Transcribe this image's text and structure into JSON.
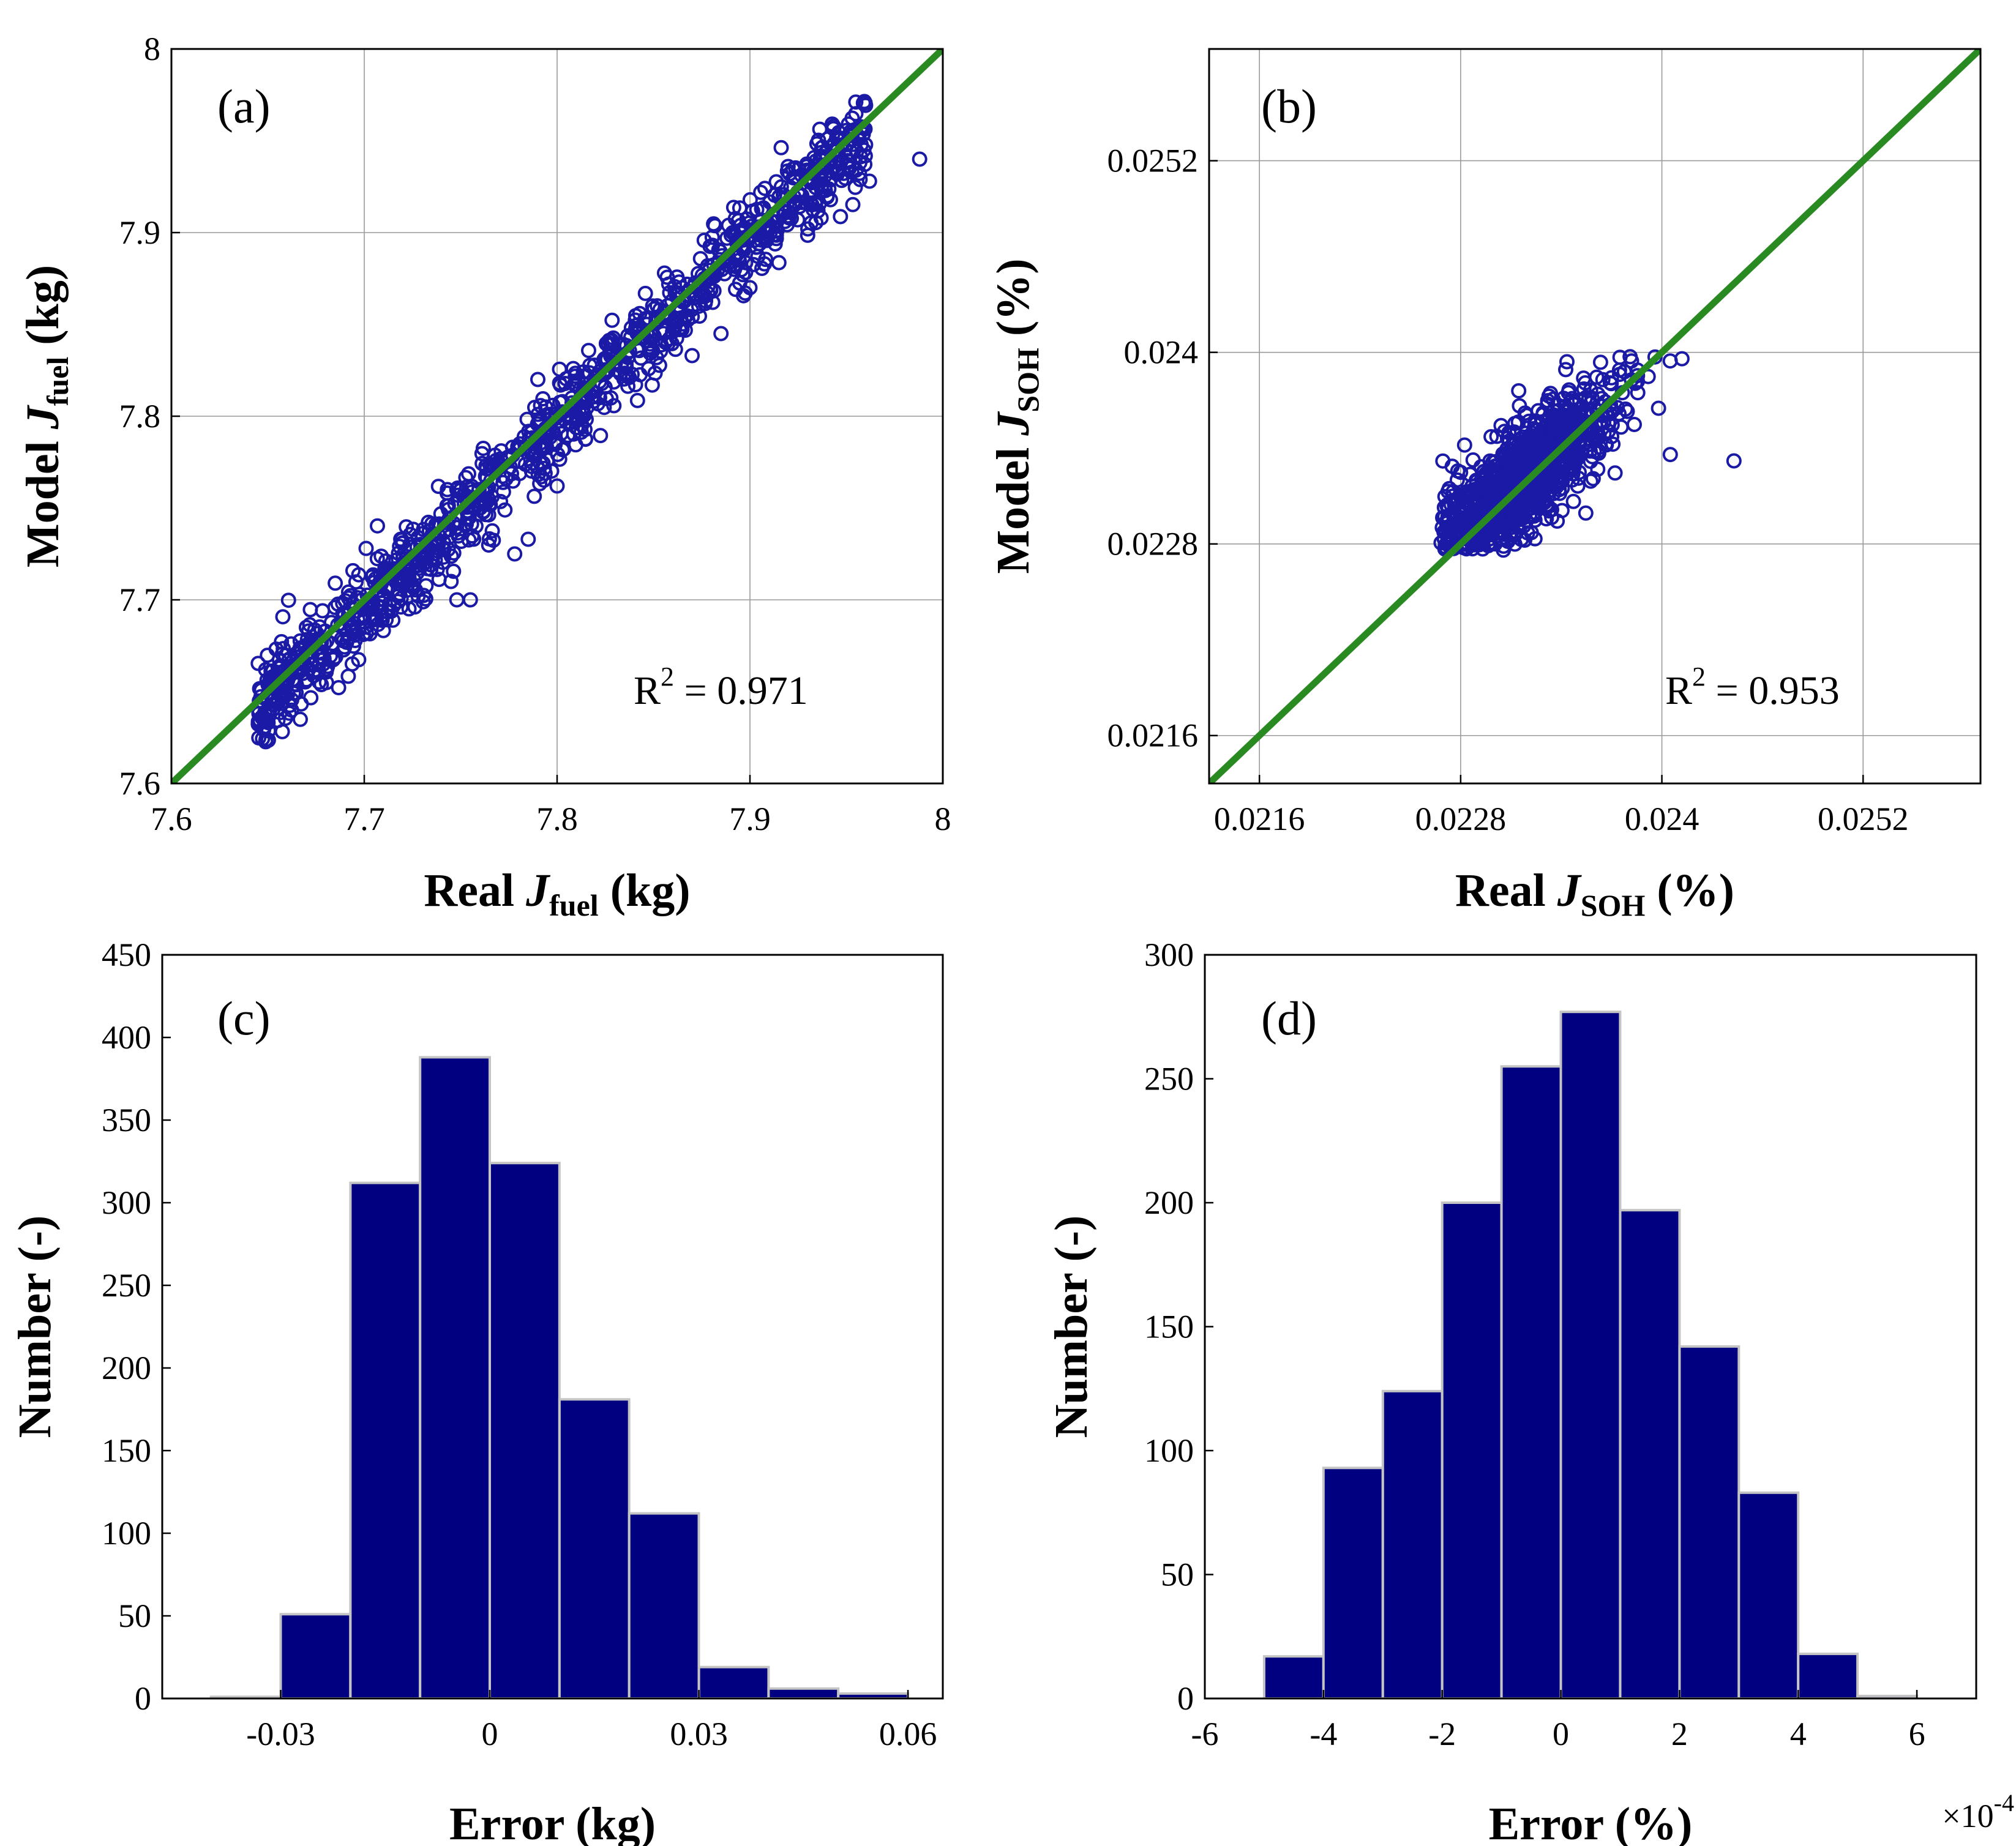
{
  "colors": {
    "marker": "#1a1aa6",
    "fit_line": "#2a8a22",
    "bar_fill": "#000080",
    "bar_edge": "#c4c4c4"
  },
  "chart_data": [
    {
      "id": "a",
      "type": "scatter",
      "panel_label": "(a)",
      "xlabel": {
        "pre": "Real ",
        "var": "J",
        "sub": "fuel",
        "post": " (kg)"
      },
      "ylabel": {
        "pre": "Model ",
        "var": "J",
        "sub": "fuel",
        "post": " (kg)"
      },
      "xlim": [
        7.6,
        8.0
      ],
      "ylim": [
        7.6,
        8.0
      ],
      "xticks": [
        7.6,
        7.7,
        7.8,
        7.9,
        8.0
      ],
      "yticks": [
        7.6,
        7.7,
        7.8,
        7.9,
        8.0
      ],
      "xtick_labels": [
        "7.6",
        "7.7",
        "7.8",
        "7.9",
        "8"
      ],
      "ytick_labels": [
        "7.6",
        "7.7",
        "7.8",
        "7.9",
        "8"
      ],
      "grid": true,
      "annotation": {
        "base": "R",
        "sup": "2",
        "rest": " = 0.971"
      },
      "reference_line": [
        [
          7.6,
          7.6
        ],
        [
          8.0,
          8.0
        ]
      ],
      "cloud": {
        "count": 1100,
        "xmin": 7.645,
        "xmax": 7.96,
        "spread": 0.022,
        "bias": -0.004,
        "seed": 11
      },
      "outliers": [
        [
          7.988,
          7.94
        ],
        [
          7.962,
          7.928
        ],
        [
          7.955,
          7.934
        ],
        [
          7.94,
          7.92
        ],
        [
          7.93,
          7.902
        ],
        [
          7.9,
          7.87
        ],
        [
          7.885,
          7.845
        ],
        [
          7.785,
          7.733
        ],
        [
          7.778,
          7.725
        ],
        [
          7.755,
          7.7
        ],
        [
          7.748,
          7.7
        ],
        [
          7.745,
          7.71
        ],
        [
          7.79,
          7.82
        ],
        [
          7.87,
          7.833
        ],
        [
          7.8,
          7.762
        ]
      ]
    },
    {
      "id": "b",
      "type": "scatter",
      "panel_label": "(b)",
      "xlabel": {
        "pre": "Real ",
        "var": "J",
        "sub": "SOH",
        "post": " (%)"
      },
      "ylabel": {
        "pre": "Model ",
        "var": "J",
        "sub": "SOH",
        "post": " (%)"
      },
      "xlim": [
        0.0213,
        0.0259
      ],
      "ylim": [
        0.0213,
        0.0259
      ],
      "xticks": [
        0.0216,
        0.0228,
        0.024,
        0.0252
      ],
      "yticks": [
        0.0216,
        0.0228,
        0.024,
        0.0252
      ],
      "xtick_labels": [
        "0.0216",
        "0.0228",
        "0.024",
        "0.0252"
      ],
      "ytick_labels": [
        "0.0216",
        "0.0228",
        "0.024",
        "0.0252"
      ],
      "grid": true,
      "annotation": {
        "base": "R",
        "sup": "2",
        "rest": " = 0.953"
      },
      "reference_line": [
        [
          0.0213,
          0.0213
        ],
        [
          0.0259,
          0.0259
        ]
      ],
      "cloud": {
        "count": 950,
        "cx": 0.02312,
        "cy": 0.02315,
        "sd_along": 0.00042,
        "sd_across": 0.00013,
        "angle_deg": 45,
        "xmin": 0.02268,
        "xmax": 0.02412,
        "ymin": 0.02276,
        "ymax": 0.02398,
        "seed": 23
      },
      "outliers": [
        [
          0.02443,
          0.02332
        ],
        [
          0.02412,
          0.02396
        ],
        [
          0.02405,
          0.02336
        ],
        [
          0.02398,
          0.02365
        ]
      ]
    },
    {
      "id": "c",
      "type": "bar",
      "panel_label": "(c)",
      "xlabel": {
        "pre": "Error (kg)",
        "var": "",
        "sub": "",
        "post": ""
      },
      "ylabel": {
        "pre": "Number (-)",
        "var": "",
        "sub": "",
        "post": ""
      },
      "xlim": [
        -0.047,
        0.065
      ],
      "ylim": [
        0,
        450
      ],
      "xticks": [
        -0.03,
        0,
        0.03,
        0.06
      ],
      "yticks": [
        0,
        50,
        100,
        150,
        200,
        250,
        300,
        350,
        400,
        450
      ],
      "xtick_labels": [
        "-0.03",
        "0",
        "0.03",
        "0.06"
      ],
      "ytick_labels": [
        "0",
        "50",
        "100",
        "150",
        "200",
        "250",
        "300",
        "350",
        "400",
        "450"
      ],
      "grid": false,
      "bin_edges": [
        -0.04,
        -0.03,
        -0.02,
        -0.01,
        0.0,
        0.01,
        0.02,
        0.03,
        0.04,
        0.05,
        0.06
      ],
      "values": [
        1,
        51,
        312,
        388,
        324,
        181,
        112,
        19,
        6,
        3
      ]
    },
    {
      "id": "d",
      "type": "bar",
      "panel_label": "(d)",
      "xlabel": {
        "pre": "Error (%)",
        "var": "",
        "sub": "",
        "post": ""
      },
      "ylabel": {
        "pre": "Number (-)",
        "var": "",
        "sub": "",
        "post": ""
      },
      "xlim": [
        -6,
        7
      ],
      "ylim": [
        0,
        300
      ],
      "xticks": [
        -6,
        -4,
        -2,
        0,
        2,
        4,
        6
      ],
      "yticks": [
        0,
        50,
        100,
        150,
        200,
        250,
        300
      ],
      "xtick_labels": [
        "-6",
        "-4",
        "-2",
        "0",
        "2",
        "4",
        "6"
      ],
      "ytick_labels": [
        "0",
        "50",
        "100",
        "150",
        "200",
        "250",
        "300"
      ],
      "grid": false,
      "x_multiplier": {
        "base": "×10",
        "exp": "-4"
      },
      "bin_edges": [
        -5,
        -4,
        -3,
        -2,
        -1,
        0,
        1,
        2,
        3,
        4,
        5,
        6
      ],
      "values": [
        17,
        93,
        124,
        200,
        255,
        277,
        197,
        142,
        83,
        18,
        1
      ]
    }
  ]
}
